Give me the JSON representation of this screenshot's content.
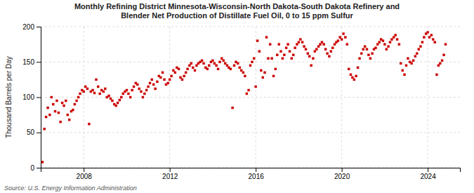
{
  "chart_data": {
    "type": "scatter",
    "title": "Monthly Refining District Minnesota-Wisconsin-North Dakota-South Dakota Refinery and\nBlender Net Production of Distillate Fuel Oil, 0 to 15 ppm Sulfur",
    "ylabel": "Thousand Barrels per Day",
    "source": "Source: U.S. Energy Information Administration",
    "color": "#cc0000",
    "marker": "square",
    "grid": true,
    "xlim": [
      2006.0,
      2025.5
    ],
    "xticks": [
      2008,
      2012,
      2016,
      2020,
      2024
    ],
    "ylim": [
      0,
      200
    ],
    "yticks": [
      0,
      50,
      100,
      150,
      200
    ],
    "x": [
      2006.08,
      2006.17,
      2006.25,
      2006.33,
      2006.42,
      2006.5,
      2006.58,
      2006.67,
      2006.75,
      2006.83,
      2006.92,
      2007.0,
      2007.08,
      2007.17,
      2007.25,
      2007.33,
      2007.42,
      2007.5,
      2007.58,
      2007.67,
      2007.75,
      2007.83,
      2007.92,
      2008.0,
      2008.08,
      2008.17,
      2008.25,
      2008.33,
      2008.42,
      2008.5,
      2008.58,
      2008.67,
      2008.75,
      2008.83,
      2008.92,
      2009.0,
      2009.08,
      2009.17,
      2009.25,
      2009.33,
      2009.42,
      2009.5,
      2009.58,
      2009.67,
      2009.75,
      2009.83,
      2009.92,
      2010.0,
      2010.08,
      2010.17,
      2010.25,
      2010.33,
      2010.42,
      2010.5,
      2010.58,
      2010.67,
      2010.75,
      2010.83,
      2010.92,
      2011.0,
      2011.08,
      2011.17,
      2011.25,
      2011.33,
      2011.42,
      2011.5,
      2011.58,
      2011.67,
      2011.75,
      2011.83,
      2011.92,
      2012.0,
      2012.08,
      2012.17,
      2012.25,
      2012.33,
      2012.42,
      2012.5,
      2012.58,
      2012.67,
      2012.75,
      2012.83,
      2012.92,
      2013.0,
      2013.08,
      2013.17,
      2013.25,
      2013.33,
      2013.42,
      2013.5,
      2013.58,
      2013.67,
      2013.75,
      2013.83,
      2013.92,
      2014.0,
      2014.08,
      2014.17,
      2014.25,
      2014.33,
      2014.42,
      2014.5,
      2014.58,
      2014.67,
      2014.75,
      2014.83,
      2014.92,
      2015.0,
      2015.08,
      2015.17,
      2015.25,
      2015.33,
      2015.42,
      2015.5,
      2015.58,
      2015.67,
      2015.75,
      2015.83,
      2015.92,
      2016.0,
      2016.08,
      2016.17,
      2016.25,
      2016.33,
      2016.42,
      2016.5,
      2016.58,
      2016.67,
      2016.75,
      2016.83,
      2016.92,
      2017.0,
      2017.08,
      2017.17,
      2017.25,
      2017.33,
      2017.42,
      2017.5,
      2017.58,
      2017.67,
      2017.75,
      2017.83,
      2017.92,
      2018.0,
      2018.08,
      2018.17,
      2018.25,
      2018.33,
      2018.42,
      2018.5,
      2018.58,
      2018.67,
      2018.75,
      2018.83,
      2018.92,
      2019.0,
      2019.08,
      2019.17,
      2019.25,
      2019.33,
      2019.42,
      2019.5,
      2019.58,
      2019.67,
      2019.75,
      2019.83,
      2019.92,
      2020.0,
      2020.08,
      2020.17,
      2020.25,
      2020.33,
      2020.42,
      2020.5,
      2020.58,
      2020.67,
      2020.75,
      2020.83,
      2020.92,
      2021.0,
      2021.08,
      2021.17,
      2021.25,
      2021.33,
      2021.42,
      2021.5,
      2021.58,
      2021.67,
      2021.75,
      2021.83,
      2021.92,
      2022.0,
      2022.08,
      2022.17,
      2022.25,
      2022.33,
      2022.42,
      2022.5,
      2022.58,
      2022.67,
      2022.75,
      2022.83,
      2022.92,
      2023.0,
      2023.08,
      2023.17,
      2023.25,
      2023.33,
      2023.42,
      2023.5,
      2023.58,
      2023.67,
      2023.75,
      2023.83,
      2023.92,
      2024.0,
      2024.08,
      2024.17,
      2024.25,
      2024.33,
      2024.42,
      2024.5,
      2024.58,
      2024.67,
      2024.75,
      2024.83
    ],
    "values": [
      8,
      55,
      72,
      85,
      75,
      100,
      90,
      80,
      95,
      78,
      65,
      92,
      88,
      95,
      75,
      68,
      80,
      82,
      90,
      95,
      100,
      105,
      110,
      108,
      115,
      112,
      62,
      108,
      110,
      106,
      125,
      115,
      105,
      110,
      108,
      112,
      100,
      102,
      98,
      95,
      90,
      88,
      92,
      96,
      100,
      105,
      108,
      110,
      105,
      100,
      110,
      115,
      120,
      118,
      112,
      108,
      100,
      105,
      110,
      115,
      120,
      125,
      118,
      112,
      122,
      130,
      128,
      135,
      125,
      118,
      120,
      125,
      130,
      138,
      135,
      142,
      140,
      128,
      125,
      130,
      135,
      140,
      145,
      148,
      142,
      138,
      145,
      148,
      150,
      152,
      148,
      142,
      140,
      145,
      150,
      152,
      148,
      145,
      140,
      150,
      155,
      152,
      148,
      145,
      142,
      140,
      85,
      145,
      150,
      148,
      142,
      138,
      135,
      130,
      105,
      110,
      145,
      150,
      155,
      115,
      180,
      165,
      138,
      128,
      135,
      185,
      155,
      175,
      155,
      130,
      140,
      160,
      175,
      165,
      155,
      160,
      170,
      175,
      165,
      155,
      160,
      170,
      175,
      178,
      182,
      178,
      172,
      168,
      162,
      158,
      145,
      155,
      165,
      168,
      172,
      175,
      178,
      175,
      168,
      162,
      158,
      165,
      170,
      175,
      178,
      180,
      185,
      182,
      190,
      185,
      175,
      140,
      132,
      128,
      125,
      130,
      142,
      155,
      162,
      168,
      172,
      168,
      160,
      155,
      162,
      168,
      170,
      175,
      178,
      182,
      180,
      175,
      168,
      172,
      178,
      182,
      185,
      188,
      182,
      175,
      148,
      138,
      132,
      145,
      155,
      150,
      148,
      152,
      158,
      162,
      168,
      172,
      178,
      185,
      190,
      192,
      185,
      188,
      182,
      178,
      132,
      145,
      148,
      152,
      160,
      175
    ]
  }
}
